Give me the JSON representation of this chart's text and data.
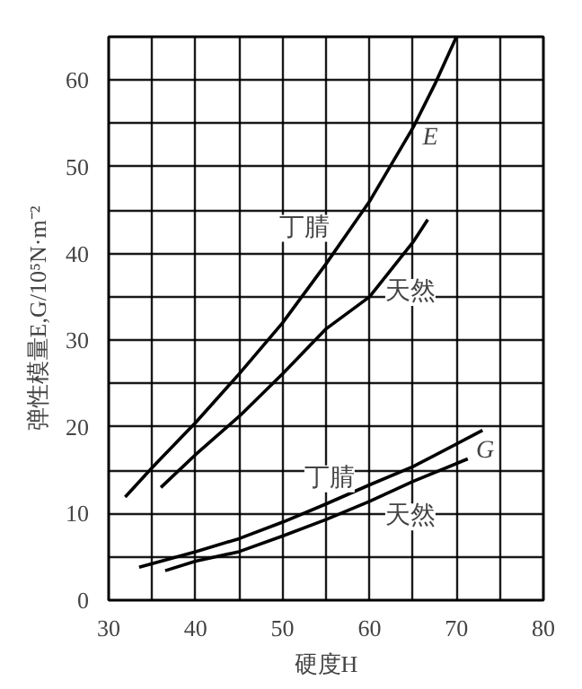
{
  "chart_data": {
    "type": "line",
    "xlabel": "硬度H",
    "ylabel": "弹性模量E,G/10⁵N·m⁻²",
    "xlim": [
      30,
      80
    ],
    "ylim": [
      0,
      65
    ],
    "xticks": [
      30,
      {
        "value": 35,
        "label": null
      },
      40,
      {
        "value": 45,
        "label": null
      },
      50,
      {
        "value": 55,
        "label": null
      },
      60,
      {
        "value": 65,
        "label": null
      },
      70,
      {
        "value": 75,
        "label": null
      },
      80
    ],
    "yticks": [
      0,
      {
        "value": 5,
        "label": null
      },
      10,
      {
        "value": 15,
        "label": null
      },
      20,
      {
        "value": 25,
        "label": null
      },
      30,
      {
        "value": 35,
        "label": null
      },
      40,
      {
        "value": 45,
        "label": null
      },
      50,
      {
        "value": 55,
        "label": null
      },
      60,
      {
        "value": 65,
        "label": null
      }
    ],
    "grid": true,
    "marker": "none",
    "line_style": "solid",
    "series": [
      {
        "color": "#000000",
        "x": [
          31.9,
          35,
          40,
          45,
          50,
          55,
          60,
          65,
          67.5,
          70
        ],
        "values": [
          11.9,
          15.3,
          20.5,
          26.1,
          32,
          38.8,
          46,
          54.5,
          59.5,
          65
        ]
      },
      {
        "color": "#000000",
        "x": [
          36,
          40,
          45,
          50,
          55,
          60,
          65,
          66.7
        ],
        "values": [
          13,
          16.8,
          21.2,
          26.1,
          31.3,
          35,
          41.3,
          43.9
        ]
      },
      {
        "color": "#000000",
        "x": [
          33.5,
          40,
          45,
          50,
          55,
          60,
          65,
          73
        ],
        "values": [
          3.8,
          5.6,
          7.1,
          9,
          11.1,
          13.3,
          15.4,
          19.6
        ]
      },
      {
        "color": "#000000",
        "x": [
          36.5,
          40,
          45,
          50,
          55,
          60,
          65,
          71.3
        ],
        "values": [
          3.4,
          4.5,
          5.6,
          7.4,
          9.3,
          11.4,
          13.7,
          16.3
        ]
      }
    ],
    "annotations": [
      {
        "text": "E",
        "x": 67,
        "y": 53.3
      },
      {
        "text": "丁腈",
        "x": 52.5,
        "y": 42.9
      },
      {
        "text": "天然",
        "x": 64.7,
        "y": 35.5
      },
      {
        "text": "G",
        "x": 73.3,
        "y": 17.2
      },
      {
        "text": "丁腈",
        "x": 55.4,
        "y": 14
      },
      {
        "text": "天然",
        "x": 64.7,
        "y": 9.6
      }
    ]
  }
}
